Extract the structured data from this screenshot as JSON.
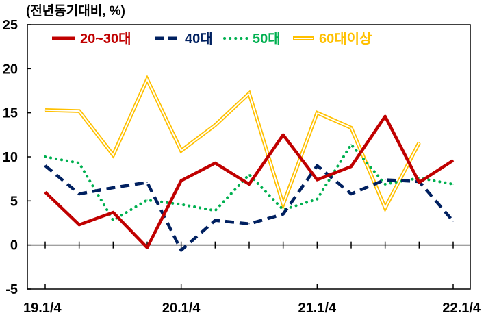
{
  "chart_data": {
    "type": "line",
    "unit_label": "(전년동기대비, %)",
    "ylim": [
      -5,
      25
    ],
    "yticks": [
      25,
      20,
      15,
      10,
      5,
      0,
      -5
    ],
    "x_tick_labels": [
      "19.1/4",
      "20.1/4",
      "21.1/4",
      "22.1/4"
    ],
    "x_tick_positions": [
      0,
      4,
      8,
      12
    ],
    "x_points": 13,
    "legend_position": "top",
    "grid": false,
    "series": [
      {
        "name": "20~30대",
        "color": "#c00000",
        "style": "solid",
        "values": [
          6.0,
          2.3,
          3.7,
          -0.3,
          7.3,
          9.3,
          6.9,
          12.5,
          7.4,
          8.9,
          14.6,
          7.1,
          9.6
        ]
      },
      {
        "name": "40대",
        "color": "#002060",
        "style": "dashed",
        "values": [
          9.0,
          5.8,
          6.5,
          7.1,
          -0.6,
          2.8,
          2.4,
          3.5,
          9.0,
          5.8,
          7.4,
          7.2,
          2.7
        ]
      },
      {
        "name": "50대",
        "color": "#00b050",
        "style": "dotted",
        "values": [
          10.0,
          9.3,
          2.8,
          5.1,
          4.6,
          3.9,
          8.0,
          4.0,
          5.2,
          11.4,
          6.9,
          7.6,
          6.9
        ]
      },
      {
        "name": "60대이상",
        "color": "#ffc000",
        "style": "double",
        "values": [
          15.3,
          15.2,
          10.2,
          18.8,
          10.7,
          13.6,
          17.2,
          4.6,
          15.0,
          13.3,
          4.2,
          11.6,
          null
        ]
      }
    ]
  }
}
